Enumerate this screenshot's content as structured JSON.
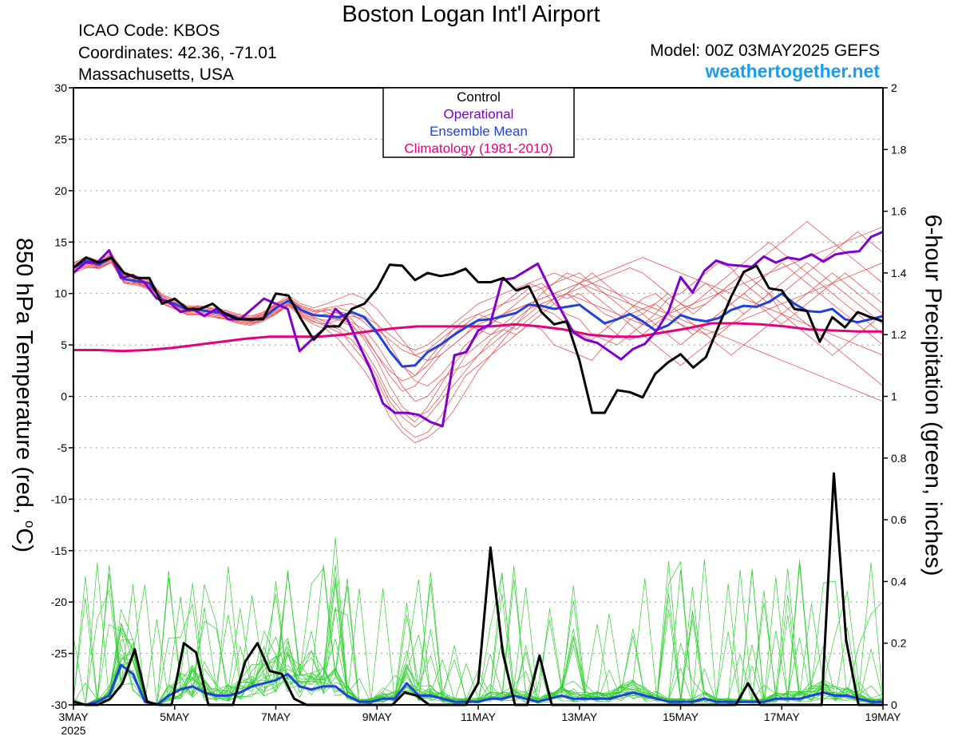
{
  "header": {
    "title": "Boston Logan Int'l Airport",
    "icao": "ICAO Code: KBOS",
    "coordinates": "Coordinates: 42.36, -71.01",
    "region": "Massachusetts, USA",
    "model": "Model: 00Z 03MAY2025 GEFS",
    "site": "weathertogether.net"
  },
  "axes": {
    "left_title_prefix": "850 hPa Temperature (red, ",
    "left_title_degree": "o",
    "left_title_suffix": "C)",
    "right_title": "6-hour Precipitation (green, inches)",
    "year_label": "2025"
  },
  "colors": {
    "control": "#000000",
    "operational": "#8000d0",
    "ensemble_mean": "#2040e0",
    "climatology": "#e8007a",
    "members_temp": "#f04040",
    "members_precip": "#30d030",
    "site": "#1a9cf0"
  },
  "chart_data": {
    "type": "line",
    "x_unit": "days since 00Z 03MAY2025 (6-hour steps)",
    "x_ticks": [
      {
        "x": 0,
        "label": "3MAY"
      },
      {
        "x": 2,
        "label": "5MAY"
      },
      {
        "x": 4,
        "label": "7MAY"
      },
      {
        "x": 6,
        "label": "9MAY"
      },
      {
        "x": 8,
        "label": "11MAY"
      },
      {
        "x": 10,
        "label": "13MAY"
      },
      {
        "x": 12,
        "label": "15MAY"
      },
      {
        "x": 14,
        "label": "17MAY"
      },
      {
        "x": 16,
        "label": "19MAY"
      }
    ],
    "xlim": [
      0,
      16
    ],
    "left_axis": {
      "label": "850 hPa Temperature (red, °C)",
      "ylim": [
        -30,
        30
      ],
      "ticks": [
        30,
        25,
        20,
        15,
        10,
        5,
        0,
        -5,
        -10,
        -15,
        -20,
        -25,
        -30
      ]
    },
    "right_axis": {
      "label": "6-hour Precipitation (green, inches)",
      "ylim": [
        0,
        2
      ],
      "ticks": [
        "2",
        "1.8",
        "1.6",
        "1.4",
        "1.2",
        "1",
        "0.8",
        "0.6",
        "0.4",
        "0.2",
        "0"
      ]
    },
    "grid": "dotted horizontal",
    "legend": {
      "position": "top-center",
      "entries": [
        {
          "label": "Control",
          "color": "#000000"
        },
        {
          "label": "Operational",
          "color": "#8000d0"
        },
        {
          "label": "Ensemble Mean",
          "color": "#2040e0"
        },
        {
          "label": "Climatology (1981-2010)",
          "color": "#e8007a"
        }
      ]
    },
    "temperature": {
      "control": [
        12.5,
        13.5,
        13.0,
        13.5,
        12.0,
        11.5,
        11.5,
        9.0,
        9.5,
        8.5,
        8.5,
        9.0,
        8.0,
        7.5,
        7.5,
        7.5,
        10.0,
        9.8,
        7.5,
        5.5,
        6.8,
        6.8,
        8.5,
        9.0,
        10.5,
        12.8,
        12.7,
        11.3,
        12.0,
        11.7,
        11.9,
        12.4,
        11.1,
        11.1,
        11.5,
        10.3,
        10.7,
        8.2,
        7.0,
        7.3,
        3.5,
        -1.6,
        -1.6,
        0.6,
        0.4,
        -0.1,
        2.2,
        3.3,
        4.1,
        2.8,
        3.8,
        6.8,
        9.7,
        12.1,
        12.7,
        10.5,
        10.3,
        8.5,
        8.3,
        5.3,
        7.7,
        6.7,
        8.2,
        7.7,
        7.3
      ],
      "operational": [
        12.0,
        13.0,
        13.0,
        14.2,
        11.5,
        11.8,
        11.0,
        9.5,
        9.2,
        8.2,
        8.5,
        7.8,
        8.5,
        7.5,
        7.5,
        8.5,
        9.5,
        9.0,
        8.5,
        4.4,
        5.5,
        6.5,
        8.5,
        7.5,
        5.0,
        2.5,
        -0.7,
        -1.6,
        -1.6,
        -1.8,
        -2.5,
        -2.9,
        4.0,
        4.3,
        6.4,
        7.0,
        11.3,
        11.5,
        12.2,
        12.9,
        10.5,
        8.3,
        6.2,
        5.5,
        5.2,
        4.4,
        3.6,
        4.6,
        5.1,
        6.4,
        8.3,
        11.6,
        10.1,
        12.2,
        13.2,
        12.8,
        12.7,
        12.6,
        13.6,
        13.0,
        13.5,
        13.3,
        13.8,
        13.1,
        13.8,
        14.0,
        14.1,
        15.5,
        16.0
      ],
      "mean": [
        12.5,
        13.2,
        12.8,
        13.5,
        11.4,
        11.2,
        11.0,
        9.4,
        9.0,
        8.4,
        8.4,
        8.2,
        8.1,
        7.6,
        7.4,
        7.6,
        8.6,
        9.3,
        8.4,
        7.9,
        7.8,
        7.7,
        8.2,
        7.7,
        6.2,
        4.4,
        2.9,
        3.0,
        4.3,
        5.0,
        5.9,
        6.7,
        7.4,
        7.5,
        7.8,
        8.1,
        8.9,
        8.8,
        8.5,
        8.7,
        8.9,
        8.0,
        7.1,
        7.5,
        8.0,
        7.3,
        6.4,
        6.9,
        7.9,
        7.5,
        7.3,
        7.6,
        8.4,
        8.8,
        8.7,
        9.2,
        10.0,
        9.0,
        8.3,
        8.2,
        8.5,
        7.5,
        7.2,
        7.5,
        7.8
      ],
      "climatology": [
        4.5,
        4.5,
        4.4,
        4.5,
        4.7,
        5.0,
        5.3,
        5.6,
        5.8,
        5.8,
        5.8,
        6.0,
        6.3,
        6.6,
        6.8,
        6.8,
        6.8,
        6.8,
        7.0,
        6.8,
        6.5,
        6.0,
        5.8,
        5.8,
        6.2,
        6.6,
        7.1,
        7.1,
        7.0,
        6.8,
        6.5,
        6.4,
        6.3,
        6.3
      ],
      "members": [
        [
          12,
          13,
          12.5,
          13,
          11,
          11,
          10.5,
          9,
          8.5,
          8,
          8,
          7.8,
          7.5,
          7.2,
          7,
          7.5,
          8,
          9,
          8,
          7.5,
          7,
          7.5,
          7.2,
          6.5,
          5,
          3,
          1,
          -0.5,
          0,
          1.5,
          2.5,
          3,
          4,
          5.5,
          6.5,
          6,
          7,
          6.5,
          5,
          4.5,
          4,
          3.5,
          5,
          6,
          7.5,
          8,
          9,
          10,
          9,
          8,
          9,
          10,
          11,
          12,
          11,
          10,
          8,
          7,
          6,
          5,
          4,
          5,
          6,
          7,
          8
        ],
        [
          12.5,
          13,
          13,
          13.5,
          12,
          11.5,
          11,
          9.5,
          9,
          8.5,
          8.8,
          8.5,
          8,
          7.8,
          7.5,
          8,
          9,
          9.5,
          8.5,
          8,
          8.5,
          8,
          7.5,
          6,
          4,
          2,
          0.5,
          1,
          2.5,
          4,
          5,
          6,
          7.5,
          8,
          9,
          10,
          11,
          10.5,
          9,
          8,
          7.5,
          6,
          5.5,
          5,
          6,
          7,
          8,
          9.5,
          10,
          11,
          12,
          13,
          12.5,
          11,
          10,
          9,
          10,
          11,
          12,
          13,
          14,
          15,
          16,
          15,
          14
        ],
        [
          12,
          12.5,
          12.5,
          13,
          11.5,
          11,
          10.8,
          9.2,
          8.8,
          8.2,
          8.5,
          8,
          7.8,
          7.5,
          7.2,
          7.8,
          8.5,
          9.2,
          8.2,
          7.8,
          8,
          8.2,
          8,
          7.2,
          6,
          4.5,
          3,
          2,
          3,
          4.5,
          6,
          7,
          8,
          8.5,
          9,
          9.5,
          10.5,
          11,
          10,
          9.5,
          10,
          9,
          8,
          7.5,
          8,
          8.5,
          9,
          8,
          7,
          6,
          7,
          8,
          9,
          10,
          9,
          8,
          7,
          8,
          9,
          10,
          11,
          12,
          11,
          10,
          9
        ],
        [
          13,
          13.5,
          13,
          13.8,
          11.8,
          11.6,
          11.2,
          9.8,
          9.2,
          8.6,
          8.6,
          8.4,
          8.2,
          7.8,
          7.6,
          8,
          8.8,
          9.6,
          8.8,
          8.4,
          8.2,
          7.6,
          7,
          5.5,
          3.5,
          1,
          -1,
          -2,
          -1.5,
          0,
          2,
          4,
          5,
          6,
          7,
          8,
          9,
          8.5,
          8,
          7,
          6,
          5.5,
          6.5,
          7.5,
          8.5,
          9.5,
          10,
          9,
          8,
          7,
          6,
          5,
          4,
          5,
          6,
          7,
          8,
          9,
          10,
          11,
          12,
          11,
          10,
          9,
          8
        ],
        [
          12.2,
          12.8,
          12.6,
          13.2,
          11.2,
          11,
          10.6,
          9.4,
          8.9,
          8.3,
          8.3,
          8.1,
          8,
          7.6,
          7.3,
          7.7,
          8.4,
          9.4,
          8.4,
          8,
          7.8,
          7.4,
          6.8,
          5.8,
          4,
          2.5,
          1.5,
          2,
          3.5,
          5,
          6.5,
          7.5,
          8,
          7.5,
          7,
          6.5,
          7.5,
          8.5,
          9.5,
          10,
          9,
          8,
          7,
          6,
          5.5,
          6,
          7,
          8,
          9,
          10,
          11,
          10,
          9,
          8,
          9,
          10,
          11,
          12,
          13,
          12,
          11,
          10,
          9,
          8,
          7
        ],
        [
          12.6,
          13.3,
          12.9,
          13.4,
          11.6,
          11.4,
          11,
          9.6,
          9.1,
          8.5,
          8.5,
          8.3,
          8.1,
          7.7,
          7.5,
          7.9,
          8.7,
          9.3,
          8.3,
          7.7,
          7.2,
          6.8,
          6,
          4.5,
          2.5,
          0,
          -1.5,
          -2.5,
          -1,
          1,
          3,
          4.5,
          6,
          7,
          8,
          8.5,
          9,
          9.5,
          10,
          10.5,
          11,
          10,
          9,
          8,
          7,
          6,
          5,
          4,
          3,
          4,
          5,
          6,
          7,
          8,
          9,
          10,
          9,
          8,
          7,
          6,
          5,
          4,
          3,
          2,
          1
        ],
        [
          12.4,
          13,
          12.7,
          13.3,
          11.3,
          11.1,
          10.7,
          9.3,
          8.8,
          8.2,
          8.2,
          8,
          7.9,
          7.4,
          7.2,
          7.6,
          8.3,
          9.1,
          8.1,
          7.6,
          7.4,
          7.6,
          7.8,
          7.5,
          6.5,
          5.5,
          4.5,
          4,
          4.5,
          5.5,
          6.5,
          7,
          6.5,
          6,
          6.5,
          7.5,
          8.5,
          9,
          9.5,
          10,
          10.5,
          11,
          11.5,
          12,
          12.5,
          12,
          11,
          10,
          9,
          8.5,
          9,
          10,
          11,
          12,
          13,
          14,
          15,
          16,
          17,
          16,
          15,
          14,
          13,
          12,
          11
        ],
        [
          12.8,
          13.4,
          13.1,
          13.7,
          11.9,
          11.5,
          11.1,
          9.7,
          9.3,
          8.7,
          8.7,
          8.5,
          8.3,
          7.9,
          7.7,
          8.1,
          8.9,
          9.5,
          8.7,
          8.3,
          8.6,
          8.8,
          9,
          8.5,
          7,
          5,
          3,
          1.5,
          1,
          2,
          3.5,
          5,
          6,
          7,
          8,
          9,
          10,
          10.5,
          11,
          11.5,
          12,
          11,
          10,
          9,
          8,
          7,
          6.5,
          7,
          8,
          9,
          10,
          11,
          12,
          13,
          14,
          15,
          14,
          13,
          12,
          11,
          10,
          9,
          8,
          7,
          6
        ],
        [
          12.1,
          12.7,
          12.5,
          13.1,
          11.1,
          10.9,
          10.5,
          9.1,
          8.6,
          8,
          8,
          7.8,
          7.6,
          7.2,
          7,
          7.4,
          8.1,
          8.9,
          7.9,
          7.3,
          6.8,
          6.2,
          5.5,
          4,
          2,
          -0.5,
          -2,
          -3,
          -2,
          -0.5,
          1,
          2.5,
          4,
          5,
          6,
          7,
          8,
          9,
          9.5,
          10,
          9.5,
          9,
          8.5,
          8,
          7.5,
          7,
          7.5,
          8,
          8.5,
          9,
          9.5,
          10,
          10.5,
          11,
          11.5,
          12,
          12.5,
          13,
          13.5,
          14,
          14.5,
          15,
          15.5,
          16,
          16.5
        ],
        [
          12.3,
          12.9,
          12.8,
          13.3,
          11.4,
          11.2,
          10.9,
          9.5,
          9,
          8.4,
          8.4,
          8.2,
          8,
          7.7,
          7.4,
          7.8,
          8.6,
          9.4,
          8.6,
          8.2,
          8.4,
          8.6,
          8.2,
          7.8,
          7,
          6,
          5,
          4.5,
          5,
          6,
          7,
          8,
          9,
          9.5,
          10,
          10.5,
          11,
          11.5,
          12,
          11.5,
          11,
          10.5,
          10,
          9.5,
          9,
          8.5,
          8,
          7.5,
          7,
          6.5,
          6,
          6.5,
          7,
          7.5,
          8,
          8.5,
          9,
          9.5,
          10,
          10.5,
          11,
          11.5,
          12,
          12.5,
          13
        ],
        [
          12.7,
          13.1,
          12.6,
          13.6,
          11.7,
          11.3,
          10.8,
          9.3,
          8.7,
          8.1,
          8.1,
          7.9,
          7.7,
          7.3,
          7.1,
          7.5,
          8.2,
          9,
          7.8,
          7.2,
          7,
          6.5,
          5,
          3.5,
          1.5,
          -1,
          -3,
          -4,
          -3.5,
          -2,
          0,
          2,
          3,
          4,
          5,
          6,
          7,
          8,
          9,
          10,
          11,
          12,
          11,
          10,
          9,
          8,
          7,
          6,
          5,
          6,
          7,
          8,
          9,
          10,
          11,
          12,
          13,
          12,
          11,
          10,
          9,
          8,
          7,
          6,
          5
        ],
        [
          12.9,
          13.6,
          13.2,
          13.9,
          12.1,
          11.7,
          11.3,
          9.9,
          9.4,
          8.8,
          8.8,
          8.6,
          8.4,
          8,
          7.8,
          8.2,
          9,
          9.8,
          9,
          8.6,
          9,
          9.5,
          10,
          9.5,
          8.5,
          7,
          5.5,
          4,
          3.5,
          4,
          5,
          6,
          7,
          7.5,
          8,
          8.5,
          9,
          9.5,
          10,
          10.5,
          11,
          11.5,
          12,
          12.5,
          13,
          13.5,
          13,
          12.5,
          12,
          11.5,
          11,
          10.5,
          10,
          9.5,
          9,
          8.5,
          8,
          7.5,
          7,
          6.5,
          6,
          5.5,
          5,
          4.5,
          4
        ],
        [
          12.2,
          12.6,
          12.4,
          13,
          11,
          10.8,
          10.4,
          9,
          8.5,
          7.9,
          7.9,
          7.7,
          7.5,
          7.1,
          6.9,
          7.3,
          8,
          8.8,
          7.7,
          7,
          6.5,
          5.5,
          4,
          2.5,
          0.5,
          -2,
          -3.5,
          -4.5,
          -4,
          -3,
          -1.5,
          0.5,
          2.5,
          4,
          5.5,
          7,
          8.5,
          10,
          11,
          12,
          11.5,
          11,
          10.5,
          10,
          9.5,
          9,
          8.5,
          8,
          7.5,
          7,
          6.5,
          6,
          5.5,
          5,
          4.5,
          4,
          3.5,
          3,
          2.5,
          2,
          1.5,
          1,
          0.5,
          0,
          -0.5
        ]
      ]
    },
    "precipitation": {
      "control": [
        0.01,
        0.0,
        0.0,
        0.02,
        0.07,
        0.18,
        0.01,
        0.0,
        0.0,
        0.2,
        0.17,
        0.0,
        0.0,
        0.0,
        0.14,
        0.2,
        0.11,
        0.1,
        0.02,
        0.0,
        0.0,
        0.0,
        0.0,
        0.0,
        0.0,
        0.0,
        0.0,
        0.04,
        0.03,
        0.0,
        0.0,
        0.0,
        0.0,
        0.07,
        0.51,
        0.17,
        0.0,
        0.0,
        0.16,
        0.0,
        0.0,
        0.0,
        0.0,
        0.0,
        0.0,
        0.0,
        0.0,
        0.0,
        0.0,
        0.0,
        0.0,
        0.0,
        0.0,
        0.0,
        0.0,
        0.07,
        0.0,
        0.0,
        0.0,
        0.0,
        0.0,
        0.0,
        0.75,
        0.21,
        0.0,
        0.0,
        0.0
      ],
      "mean": [
        0.01,
        0.0,
        0.01,
        0.03,
        0.13,
        0.1,
        0.01,
        0.0,
        0.03,
        0.05,
        0.06,
        0.04,
        0.03,
        0.03,
        0.04,
        0.06,
        0.07,
        0.08,
        0.1,
        0.06,
        0.05,
        0.06,
        0.06,
        0.03,
        0.01,
        0.01,
        0.02,
        0.02,
        0.07,
        0.03,
        0.03,
        0.02,
        0.01,
        0.01,
        0.01,
        0.02,
        0.02,
        0.03,
        0.02,
        0.01,
        0.02,
        0.03,
        0.02,
        0.02,
        0.02,
        0.02,
        0.03,
        0.04,
        0.03,
        0.02,
        0.01,
        0.01,
        0.01,
        0.02,
        0.01,
        0.01,
        0.01,
        0.01,
        0.01,
        0.02,
        0.02,
        0.02,
        0.03,
        0.04,
        0.03,
        0.03,
        0.02,
        0.01,
        0.01
      ]
    }
  }
}
